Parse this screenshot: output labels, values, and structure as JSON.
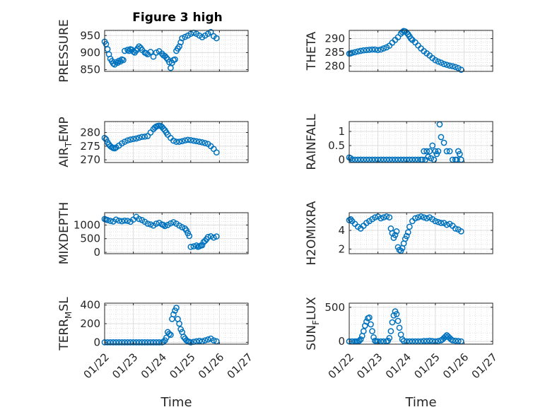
{
  "figure": {
    "title": "Figure 3 high",
    "xlabel": "Time",
    "x_ticks": [
      "01/22",
      "01/23",
      "01/24",
      "01/25",
      "01/26",
      "01/27"
    ],
    "xlim": [
      22,
      27
    ],
    "marker_color": "#0072BD",
    "marker": "circle-open",
    "grid": true,
    "minor_grid": true
  },
  "chart_data": [
    {
      "type": "scatter",
      "ylabel": "PRESSURE",
      "ylim": [
        845,
        965
      ],
      "yticks": [
        850,
        900,
        950
      ],
      "x": [
        22.0,
        22.05,
        22.1,
        22.15,
        22.2,
        22.25,
        22.3,
        22.35,
        22.4,
        22.45,
        22.5,
        22.55,
        22.6,
        22.65,
        22.7,
        22.8,
        22.85,
        22.9,
        22.95,
        23.0,
        23.05,
        23.1,
        23.15,
        23.2,
        23.25,
        23.3,
        23.4,
        23.45,
        23.5,
        23.6,
        23.7,
        23.8,
        23.9,
        24.0,
        24.05,
        24.1,
        24.15,
        24.2,
        24.25,
        24.3,
        24.35,
        24.4,
        24.45,
        24.5,
        24.55,
        24.6,
        24.65,
        24.7,
        24.8,
        24.9,
        25.0,
        25.1,
        25.2,
        25.3,
        25.4,
        25.5,
        25.6,
        25.7,
        25.8,
        25.9
      ],
      "y": [
        932,
        925,
        910,
        895,
        882,
        875,
        868,
        865,
        872,
        870,
        876,
        874,
        880,
        878,
        905,
        908,
        905,
        910,
        908,
        903,
        900,
        906,
        912,
        918,
        914,
        908,
        900,
        898,
        895,
        902,
        888,
        900,
        904,
        897,
        892,
        890,
        885,
        880,
        872,
        855,
        870,
        878,
        880,
        905,
        912,
        918,
        930,
        942,
        946,
        950,
        955,
        958,
        955,
        950,
        945,
        950,
        955,
        960,
        948,
        942
      ]
    },
    {
      "type": "scatter",
      "ylabel": "THETA",
      "ylim": [
        278,
        293
      ],
      "yticks": [
        280,
        285,
        290
      ],
      "x": [
        22.0,
        22.05,
        22.1,
        22.2,
        22.3,
        22.4,
        22.5,
        22.6,
        22.7,
        22.8,
        22.9,
        23.0,
        23.1,
        23.2,
        23.3,
        23.4,
        23.5,
        23.6,
        23.7,
        23.8,
        23.85,
        23.9,
        23.95,
        24.0,
        24.05,
        24.1,
        24.15,
        24.2,
        24.3,
        24.4,
        24.5,
        24.6,
        24.7,
        24.8,
        24.9,
        25.0,
        25.1,
        25.2,
        25.3,
        25.4,
        25.5,
        25.6,
        25.7,
        25.8,
        25.9
      ],
      "y": [
        284.5,
        284.6,
        284.8,
        285.0,
        285.3,
        285.5,
        285.7,
        285.8,
        285.9,
        286.0,
        286.0,
        285.8,
        286.0,
        286.4,
        286.8,
        287.4,
        288.5,
        289.5,
        290.5,
        291.8,
        292.4,
        292.8,
        292.6,
        292.2,
        291.6,
        290.8,
        290.0,
        289.5,
        288.6,
        287.5,
        286.4,
        285.4,
        284.6,
        283.8,
        282.9,
        282.1,
        281.6,
        281.2,
        280.7,
        280.4,
        280.1,
        279.9,
        279.6,
        279.2,
        278.6
      ]
    },
    {
      "type": "scatter",
      "ylabel": "AIR_TEMP",
      "ylim": [
        269,
        284
      ],
      "yticks": [
        270,
        275,
        280
      ],
      "x": [
        22.0,
        22.05,
        22.1,
        22.15,
        22.2,
        22.25,
        22.3,
        22.35,
        22.4,
        22.5,
        22.6,
        22.7,
        22.8,
        22.9,
        23.0,
        23.1,
        23.2,
        23.3,
        23.4,
        23.5,
        23.6,
        23.7,
        23.75,
        23.8,
        23.85,
        23.9,
        23.95,
        24.0,
        24.05,
        24.1,
        24.15,
        24.2,
        24.3,
        24.4,
        24.5,
        24.6,
        24.7,
        24.8,
        24.9,
        25.0,
        25.1,
        25.2,
        25.3,
        25.4,
        25.5,
        25.6,
        25.7,
        25.8,
        25.9
      ],
      "y": [
        278.0,
        277.5,
        276.4,
        275.6,
        275.0,
        274.6,
        274.3,
        274.2,
        274.5,
        275.2,
        276.0,
        276.6,
        277.1,
        277.4,
        277.6,
        277.8,
        278.1,
        278.4,
        278.5,
        278.7,
        280.0,
        281.2,
        281.8,
        282.2,
        282.4,
        282.5,
        282.4,
        282.0,
        281.4,
        280.8,
        280.0,
        279.2,
        278.0,
        277.0,
        276.6,
        276.6,
        276.8,
        277.1,
        277.3,
        277.2,
        277.0,
        276.8,
        276.6,
        276.4,
        276.1,
        275.8,
        275.0,
        274.0,
        272.7
      ]
    },
    {
      "type": "scatter",
      "ylabel": "RAINFALL",
      "ylim": [
        -0.1,
        1.35
      ],
      "yticks": [
        0,
        0.5,
        1
      ],
      "x": [
        22.0,
        22.05,
        22.1,
        22.2,
        22.3,
        22.4,
        22.5,
        22.6,
        22.7,
        22.8,
        22.9,
        23.0,
        23.1,
        23.2,
        23.3,
        23.4,
        23.5,
        23.6,
        23.7,
        23.8,
        23.9,
        24.0,
        24.1,
        24.2,
        24.3,
        24.4,
        24.5,
        24.55,
        24.6,
        24.65,
        24.7,
        24.75,
        24.8,
        24.85,
        24.9,
        24.95,
        25.0,
        25.05,
        25.1,
        25.15,
        25.2,
        25.3,
        25.4,
        25.5,
        25.6,
        25.7,
        25.75,
        25.8,
        25.85,
        25.9
      ],
      "y": [
        0.08,
        0.05,
        0,
        0,
        0,
        0,
        0,
        0,
        0,
        0,
        0,
        0,
        0,
        0,
        0,
        0,
        0,
        0,
        0,
        0,
        0,
        0,
        0,
        0,
        0,
        0,
        0,
        0,
        0.3,
        0,
        0.3,
        0.1,
        0.3,
        0.05,
        0.5,
        0,
        0.3,
        0.2,
        0.3,
        1.25,
        0.8,
        0.6,
        0.3,
        0.3,
        0,
        0,
        0,
        0.3,
        0.2,
        0
      ]
    },
    {
      "type": "scatter",
      "ylabel": "MIXDEPTH",
      "ylim": [
        -50,
        1450
      ],
      "yticks": [
        0,
        500,
        1000
      ],
      "x": [
        22.0,
        22.05,
        22.1,
        22.2,
        22.3,
        22.4,
        22.5,
        22.6,
        22.7,
        22.8,
        22.9,
        23.0,
        23.1,
        23.2,
        23.3,
        23.4,
        23.5,
        23.6,
        23.7,
        23.8,
        23.9,
        24.0,
        24.05,
        24.1,
        24.2,
        24.3,
        24.4,
        24.5,
        24.6,
        24.7,
        24.8,
        24.85,
        24.9,
        24.95,
        25.0,
        25.1,
        25.2,
        25.25,
        25.3,
        25.35,
        25.4,
        25.45,
        25.5,
        25.55,
        25.6,
        25.7,
        25.8,
        25.9
      ],
      "y": [
        1220,
        1200,
        1180,
        1150,
        1130,
        1200,
        1160,
        1140,
        1160,
        1150,
        1120,
        1200,
        1300,
        1220,
        1180,
        1120,
        1050,
        1020,
        980,
        1050,
        1080,
        1020,
        1000,
        960,
        1000,
        1060,
        1100,
        1050,
        980,
        920,
        870,
        800,
        700,
        600,
        200,
        220,
        250,
        200,
        220,
        250,
        260,
        380,
        420,
        480,
        560,
        590,
        540,
        580
      ]
    },
    {
      "type": "scatter",
      "ylabel": "H2OMIXRA",
      "ylim": [
        1.5,
        5.9
      ],
      "yticks": [
        2,
        4
      ],
      "x": [
        22.0,
        22.05,
        22.1,
        22.2,
        22.3,
        22.4,
        22.5,
        22.6,
        22.7,
        22.8,
        22.9,
        23.0,
        23.1,
        23.2,
        23.3,
        23.4,
        23.45,
        23.5,
        23.55,
        23.6,
        23.65,
        23.7,
        23.75,
        23.8,
        23.85,
        23.9,
        23.95,
        24.0,
        24.05,
        24.1,
        24.2,
        24.3,
        24.4,
        24.5,
        24.6,
        24.7,
        24.8,
        24.9,
        25.0,
        25.1,
        25.2,
        25.3,
        25.4,
        25.5,
        25.6,
        25.7,
        25.8,
        25.9
      ],
      "y": [
        5.1,
        5.2,
        5.0,
        4.7,
        4.4,
        4.2,
        4.5,
        4.8,
        5.0,
        5.2,
        5.4,
        5.5,
        5.3,
        5.4,
        5.5,
        5.4,
        4.2,
        3.7,
        3.2,
        3.5,
        3.9,
        2.2,
        1.9,
        1.8,
        2.1,
        2.6,
        3.1,
        3.4,
        3.8,
        4.4,
        5.0,
        5.3,
        5.4,
        5.5,
        5.4,
        5.3,
        5.4,
        5.2,
        5.0,
        4.9,
        4.8,
        4.8,
        4.6,
        4.7,
        4.5,
        4.2,
        4.1,
        3.9
      ]
    },
    {
      "type": "scatter",
      "ylabel": "TERR_MSL",
      "ylim": [
        -20,
        420
      ],
      "yticks": [
        0,
        200,
        400
      ],
      "x": [
        22.0,
        22.1,
        22.2,
        22.3,
        22.4,
        22.5,
        22.6,
        22.7,
        22.8,
        22.9,
        23.0,
        23.1,
        23.2,
        23.3,
        23.4,
        23.5,
        23.6,
        23.7,
        23.8,
        23.9,
        24.0,
        24.05,
        24.1,
        24.15,
        24.2,
        24.25,
        24.3,
        24.35,
        24.4,
        24.45,
        24.5,
        24.55,
        24.6,
        24.65,
        24.7,
        24.75,
        24.8,
        24.85,
        24.9,
        24.95,
        25.0,
        25.1,
        25.2,
        25.3,
        25.4,
        25.5,
        25.6,
        25.7,
        25.8,
        25.9
      ],
      "y": [
        0,
        0,
        0,
        0,
        0,
        0,
        0,
        0,
        0,
        0,
        0,
        0,
        0,
        0,
        0,
        0,
        0,
        0,
        0,
        0,
        0,
        5,
        20,
        50,
        110,
        90,
        80,
        250,
        300,
        340,
        370,
        250,
        200,
        140,
        110,
        60,
        40,
        20,
        10,
        5,
        0,
        5,
        10,
        15,
        10,
        20,
        30,
        40,
        20,
        10
      ]
    },
    {
      "type": "scatter",
      "ylabel": "SUN_FLUX",
      "ylim": [
        -40,
        560
      ],
      "yticks": [
        0,
        500
      ],
      "x": [
        22.0,
        22.1,
        22.2,
        22.25,
        22.3,
        22.35,
        22.4,
        22.45,
        22.5,
        22.55,
        22.6,
        22.65,
        22.7,
        22.75,
        22.8,
        22.85,
        22.9,
        22.95,
        23.0,
        23.1,
        23.2,
        23.3,
        23.35,
        23.4,
        23.45,
        23.5,
        23.55,
        23.6,
        23.65,
        23.7,
        23.75,
        23.8,
        23.85,
        23.9,
        24.0,
        24.1,
        24.2,
        24.3,
        24.4,
        24.5,
        24.6,
        24.7,
        24.8,
        24.9,
        25.0,
        25.1,
        25.2,
        25.25,
        25.3,
        25.35,
        25.4,
        25.45,
        25.5,
        25.55,
        25.6,
        25.7,
        25.8,
        25.9
      ],
      "y": [
        0,
        0,
        0,
        0,
        0,
        10,
        30,
        80,
        150,
        230,
        290,
        340,
        350,
        250,
        150,
        60,
        10,
        0,
        0,
        0,
        0,
        0,
        10,
        50,
        150,
        280,
        380,
        440,
        400,
        300,
        200,
        100,
        30,
        5,
        0,
        0,
        0,
        0,
        0,
        0,
        5,
        5,
        10,
        5,
        0,
        5,
        15,
        30,
        50,
        70,
        90,
        70,
        50,
        30,
        15,
        10,
        5,
        0
      ]
    }
  ]
}
